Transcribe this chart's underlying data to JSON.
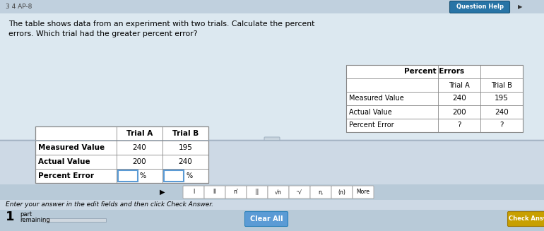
{
  "bg_color": "#cdd9e5",
  "header_bar_color": "#c8d8e5",
  "header_text": "3 4 AP-8",
  "question_text_line1": "The table shows data from an experiment with two trials. Calculate the percent",
  "question_text_line2": "errors. Which trial had the greater percent error?",
  "top_table_title": "Percent Errors",
  "top_table_rows": [
    [
      "",
      "Trial A",
      "Trial B"
    ],
    [
      "Measured Value",
      "240",
      "195"
    ],
    [
      "Actual Value",
      "200",
      "240"
    ],
    [
      "Percent Error",
      "?",
      "?"
    ]
  ],
  "bottom_table_rows": [
    [
      "",
      "Trial A",
      "Trial B"
    ],
    [
      "Measured Value",
      "240",
      "195"
    ],
    [
      "Actual Value",
      "200",
      "240"
    ],
    [
      "Percent Error",
      "",
      ""
    ]
  ],
  "toolbar_buttons": [
    "I",
    "II",
    "n'",
    "||",
    "√n",
    "√n",
    "n,",
    "(n)",
    "More"
  ],
  "footer_text": "Enter your answer in the edit fields and then click Check Answer.",
  "clear_btn": "Clear All",
  "check_btn": "Check Answ",
  "question_help_btn": "Question Help",
  "white": "#ffffff",
  "table_border": "#888888",
  "input_border": "#5b9bd5",
  "btn_clear_bg": "#5b9bd5",
  "btn_check_bg": "#c8a000",
  "toolbar_bg": "#b8cad8",
  "top_bar_bg": "#c0d0de",
  "qhelp_btn_bg": "#2874a6",
  "separator_line": "#a0b0c0",
  "bottom_bar_bg": "#b8cad8",
  "progress_bar_bg": "#8fa8bc",
  "progress_fill": "#d0d8e0"
}
